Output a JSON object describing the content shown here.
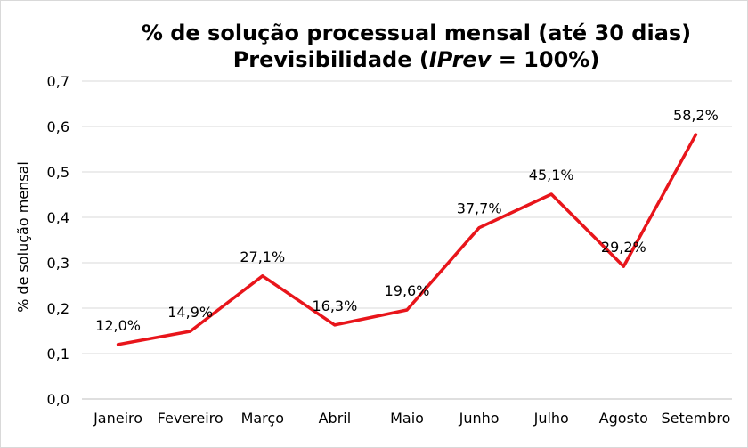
{
  "chart_data": {
    "type": "line",
    "title_line1": "% de solução processual mensal (até 30 dias)",
    "title_line2_prefix": "Previsibilidade (",
    "title_line2_italic": "IPrev",
    "title_line2_suffix": " = 100%)",
    "ylabel": "% de solução mensal",
    "xlabel": "",
    "ylim": [
      0,
      0.7
    ],
    "ytick_labels": [
      "0,0",
      "0,1",
      "0,2",
      "0,3",
      "0,4",
      "0,5",
      "0,6",
      "0,7"
    ],
    "grid": true,
    "legend": false,
    "categories": [
      "Janeiro",
      "Fevereiro",
      "Março",
      "Abril",
      "Maio",
      "Junho",
      "Julho",
      "Agosto",
      "Setembro"
    ],
    "series": [
      {
        "values": [
          0.12,
          0.149,
          0.271,
          0.163,
          0.196,
          0.377,
          0.451,
          0.292,
          0.582
        ],
        "data_labels": [
          "12,0%",
          "14,9%",
          "27,1%",
          "16,3%",
          "19,6%",
          "37,7%",
          "45,1%",
          "29,2%",
          "58,2%"
        ],
        "color": "#e8151b"
      }
    ],
    "gridline_color": "#d9d9d9",
    "axis_color": "#bfbfbf"
  }
}
